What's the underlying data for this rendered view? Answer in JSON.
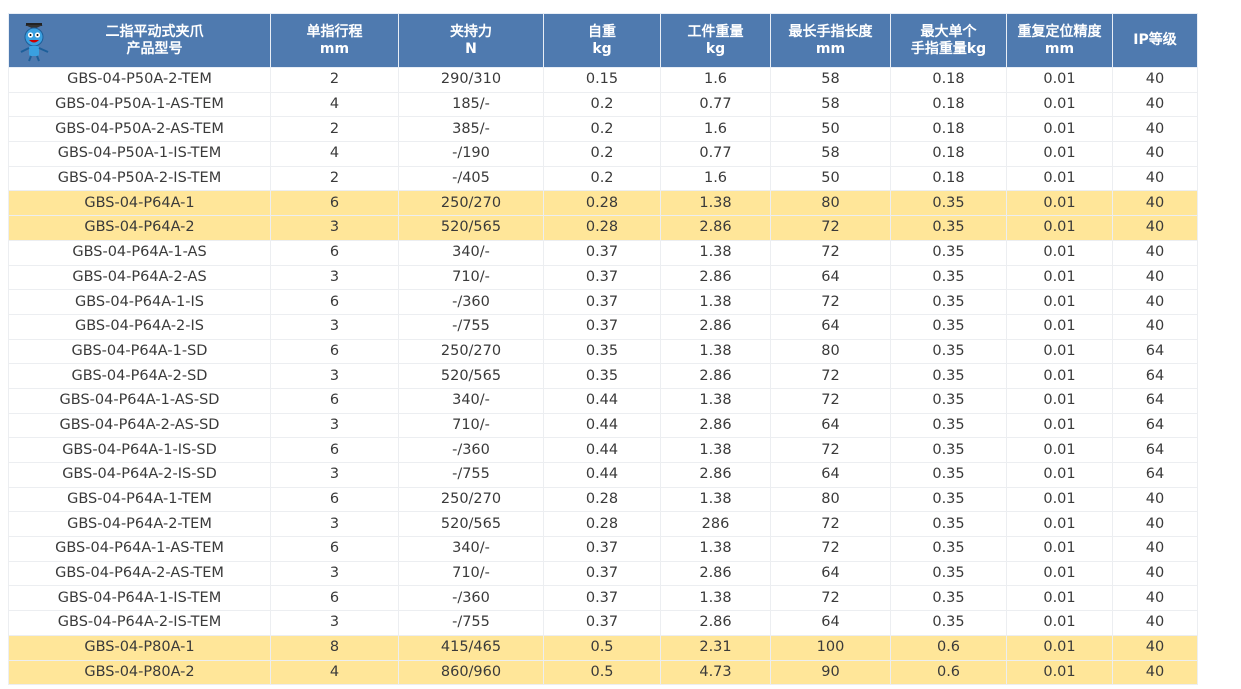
{
  "colors": {
    "header_bg": "#4f7aaf",
    "highlight": "#ffe699"
  },
  "header": {
    "logo_icon": "mascot-logo-icon",
    "columns": [
      [
        "二指平动式夹爪",
        "产品型号"
      ],
      [
        "单指行程",
        "mm"
      ],
      [
        "夹持力",
        "N"
      ],
      [
        "自重",
        "kg"
      ],
      [
        "工件重量",
        "kg"
      ],
      [
        "最长手指长度",
        "mm"
      ],
      [
        "最大单个",
        "手指重量kg"
      ],
      [
        "重复定位精度",
        "mm"
      ],
      [
        "IP等级",
        ""
      ]
    ]
  },
  "rows": [
    {
      "highlight": false,
      "cells": [
        "GBS-04-P50A-2-TEM",
        "2",
        "290/310",
        "0.15",
        "1.6",
        "58",
        "0.18",
        "0.01",
        "40"
      ]
    },
    {
      "highlight": false,
      "cells": [
        "GBS-04-P50A-1-AS-TEM",
        "4",
        "185/-",
        "0.2",
        "0.77",
        "58",
        "0.18",
        "0.01",
        "40"
      ]
    },
    {
      "highlight": false,
      "cells": [
        "GBS-04-P50A-2-AS-TEM",
        "2",
        "385/-",
        "0.2",
        "1.6",
        "50",
        "0.18",
        "0.01",
        "40"
      ]
    },
    {
      "highlight": false,
      "cells": [
        "GBS-04-P50A-1-IS-TEM",
        "4",
        "-/190",
        "0.2",
        "0.77",
        "58",
        "0.18",
        "0.01",
        "40"
      ]
    },
    {
      "highlight": false,
      "cells": [
        "GBS-04-P50A-2-IS-TEM",
        "2",
        "-/405",
        "0.2",
        "1.6",
        "50",
        "0.18",
        "0.01",
        "40"
      ]
    },
    {
      "highlight": true,
      "cells": [
        "GBS-04-P64A-1",
        "6",
        "250/270",
        "0.28",
        "1.38",
        "80",
        "0.35",
        "0.01",
        "40"
      ]
    },
    {
      "highlight": true,
      "cells": [
        "GBS-04-P64A-2",
        "3",
        "520/565",
        "0.28",
        "2.86",
        "72",
        "0.35",
        "0.01",
        "40"
      ]
    },
    {
      "highlight": false,
      "cells": [
        "GBS-04-P64A-1-AS",
        "6",
        "340/-",
        "0.37",
        "1.38",
        "72",
        "0.35",
        "0.01",
        "40"
      ]
    },
    {
      "highlight": false,
      "cells": [
        "GBS-04-P64A-2-AS",
        "3",
        "710/-",
        "0.37",
        "2.86",
        "64",
        "0.35",
        "0.01",
        "40"
      ]
    },
    {
      "highlight": false,
      "cells": [
        "GBS-04-P64A-1-IS",
        "6",
        "-/360",
        "0.37",
        "1.38",
        "72",
        "0.35",
        "0.01",
        "40"
      ]
    },
    {
      "highlight": false,
      "cells": [
        "GBS-04-P64A-2-IS",
        "3",
        "-/755",
        "0.37",
        "2.86",
        "64",
        "0.35",
        "0.01",
        "40"
      ]
    },
    {
      "highlight": false,
      "cells": [
        "GBS-04-P64A-1-SD",
        "6",
        "250/270",
        "0.35",
        "1.38",
        "80",
        "0.35",
        "0.01",
        "64"
      ]
    },
    {
      "highlight": false,
      "cells": [
        "GBS-04-P64A-2-SD",
        "3",
        "520/565",
        "0.35",
        "2.86",
        "72",
        "0.35",
        "0.01",
        "64"
      ]
    },
    {
      "highlight": false,
      "cells": [
        "GBS-04-P64A-1-AS-SD",
        "6",
        "340/-",
        "0.44",
        "1.38",
        "72",
        "0.35",
        "0.01",
        "64"
      ]
    },
    {
      "highlight": false,
      "cells": [
        "GBS-04-P64A-2-AS-SD",
        "3",
        "710/-",
        "0.44",
        "2.86",
        "64",
        "0.35",
        "0.01",
        "64"
      ]
    },
    {
      "highlight": false,
      "cells": [
        "GBS-04-P64A-1-IS-SD",
        "6",
        "-/360",
        "0.44",
        "1.38",
        "72",
        "0.35",
        "0.01",
        "64"
      ]
    },
    {
      "highlight": false,
      "cells": [
        "GBS-04-P64A-2-IS-SD",
        "3",
        "-/755",
        "0.44",
        "2.86",
        "64",
        "0.35",
        "0.01",
        "64"
      ]
    },
    {
      "highlight": false,
      "cells": [
        "GBS-04-P64A-1-TEM",
        "6",
        "250/270",
        "0.28",
        "1.38",
        "80",
        "0.35",
        "0.01",
        "40"
      ]
    },
    {
      "highlight": false,
      "cells": [
        "GBS-04-P64A-2-TEM",
        "3",
        "520/565",
        "0.28",
        "286",
        "72",
        "0.35",
        "0.01",
        "40"
      ]
    },
    {
      "highlight": false,
      "cells": [
        "GBS-04-P64A-1-AS-TEM",
        "6",
        "340/-",
        "0.37",
        "1.38",
        "72",
        "0.35",
        "0.01",
        "40"
      ]
    },
    {
      "highlight": false,
      "cells": [
        "GBS-04-P64A-2-AS-TEM",
        "3",
        "710/-",
        "0.37",
        "2.86",
        "64",
        "0.35",
        "0.01",
        "40"
      ]
    },
    {
      "highlight": false,
      "cells": [
        "GBS-04-P64A-1-IS-TEM",
        "6",
        "-/360",
        "0.37",
        "1.38",
        "72",
        "0.35",
        "0.01",
        "40"
      ]
    },
    {
      "highlight": false,
      "cells": [
        "GBS-04-P64A-2-IS-TEM",
        "3",
        "-/755",
        "0.37",
        "2.86",
        "64",
        "0.35",
        "0.01",
        "40"
      ]
    },
    {
      "highlight": true,
      "cells": [
        "GBS-04-P80A-1",
        "8",
        "415/465",
        "0.5",
        "2.31",
        "100",
        "0.6",
        "0.01",
        "40"
      ]
    },
    {
      "highlight": true,
      "cells": [
        "GBS-04-P80A-2",
        "4",
        "860/960",
        "0.5",
        "4.73",
        "90",
        "0.6",
        "0.01",
        "40"
      ]
    }
  ]
}
